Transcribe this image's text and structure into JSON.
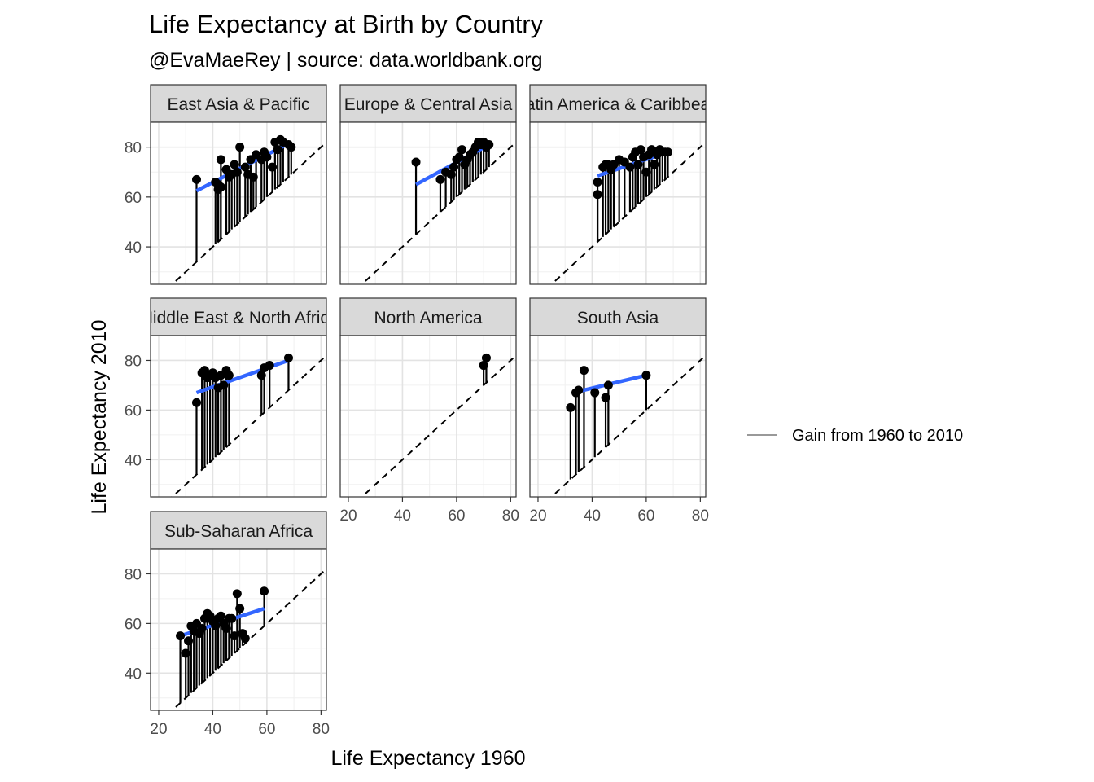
{
  "chart_data": {
    "type": "scatter",
    "title": "Life Expectancy at Birth by Country",
    "subtitle": "@EvaMaeRey | source: data.worldbank.org",
    "xlabel": "Life Expectancy 1960",
    "ylabel": "Life Expectancy 2010",
    "xlim": [
      17,
      82
    ],
    "ylim": [
      25,
      90
    ],
    "x_ticks": [
      20,
      40,
      60,
      80
    ],
    "y_ticks": [
      40,
      60,
      80
    ],
    "grid": true,
    "reference_line": "y = x",
    "legend": {
      "position": "right",
      "label": "Gain from 1960 to 2010",
      "color": "#999999"
    },
    "colors": {
      "points": "#000000",
      "segments": "#000000",
      "trend": "#3366FF",
      "reference": "#000000",
      "strip": "#d9d9d9"
    },
    "panels": [
      {
        "name": "East Asia & Pacific",
        "trend": [
          [
            34,
            62.5
          ],
          [
            69,
            82
          ]
        ],
        "points": [
          [
            34,
            67
          ],
          [
            41,
            66
          ],
          [
            42,
            65
          ],
          [
            42,
            63
          ],
          [
            43,
            64
          ],
          [
            43,
            75
          ],
          [
            45,
            71
          ],
          [
            46,
            68
          ],
          [
            47,
            69
          ],
          [
            48,
            73
          ],
          [
            49,
            70
          ],
          [
            50,
            80
          ],
          [
            52,
            72
          ],
          [
            53,
            69
          ],
          [
            54,
            75
          ],
          [
            55,
            68
          ],
          [
            56,
            77
          ],
          [
            58,
            75
          ],
          [
            59,
            78
          ],
          [
            60,
            76
          ],
          [
            62,
            72
          ],
          [
            63,
            82
          ],
          [
            64,
            79
          ],
          [
            65,
            83
          ],
          [
            66,
            82
          ],
          [
            68,
            81
          ],
          [
            69,
            80
          ]
        ]
      },
      {
        "name": "Europe & Central Asia",
        "trend": [
          [
            45,
            65
          ],
          [
            72,
            81
          ]
        ],
        "points": [
          [
            45,
            74
          ],
          [
            54,
            67
          ],
          [
            56,
            70
          ],
          [
            58,
            69
          ],
          [
            59,
            72
          ],
          [
            60,
            75
          ],
          [
            61,
            76
          ],
          [
            62,
            79
          ],
          [
            63,
            73
          ],
          [
            64,
            75
          ],
          [
            65,
            77
          ],
          [
            66,
            78
          ],
          [
            67,
            80
          ],
          [
            68,
            82
          ],
          [
            69,
            81
          ],
          [
            70,
            82
          ],
          [
            71,
            80
          ],
          [
            72,
            81
          ]
        ]
      },
      {
        "name": "Latin America & Caribbean",
        "trend": [
          [
            42,
            68.5
          ],
          [
            68,
            78
          ]
        ],
        "points": [
          [
            42,
            61
          ],
          [
            42,
            66
          ],
          [
            44,
            72
          ],
          [
            45,
            73
          ],
          [
            46,
            73
          ],
          [
            47,
            71
          ],
          [
            48,
            73
          ],
          [
            50,
            75
          ],
          [
            52,
            74
          ],
          [
            54,
            72
          ],
          [
            55,
            76
          ],
          [
            56,
            78
          ],
          [
            57,
            73
          ],
          [
            58,
            79
          ],
          [
            59,
            76
          ],
          [
            60,
            70
          ],
          [
            61,
            77
          ],
          [
            62,
            79
          ],
          [
            63,
            73
          ],
          [
            64,
            77
          ],
          [
            65,
            79
          ],
          [
            66,
            78
          ],
          [
            67,
            78
          ],
          [
            68,
            78
          ]
        ]
      },
      {
        "name": "Middle East & North Africa",
        "trend": [
          [
            34,
            67
          ],
          [
            68,
            80
          ]
        ],
        "points": [
          [
            34,
            63
          ],
          [
            36,
            75
          ],
          [
            37,
            76
          ],
          [
            38,
            73
          ],
          [
            39,
            74
          ],
          [
            40,
            75
          ],
          [
            41,
            73
          ],
          [
            42,
            69
          ],
          [
            43,
            74
          ],
          [
            44,
            70
          ],
          [
            45,
            76
          ],
          [
            46,
            74
          ],
          [
            58,
            74
          ],
          [
            59,
            77
          ],
          [
            61,
            78
          ],
          [
            68,
            81
          ]
        ]
      },
      {
        "name": "North America",
        "trend": [],
        "points": [
          [
            70,
            78
          ],
          [
            71,
            81
          ]
        ]
      },
      {
        "name": "South Asia",
        "trend": [
          [
            33,
            67
          ],
          [
            60,
            74
          ]
        ],
        "points": [
          [
            32,
            61
          ],
          [
            34,
            67
          ],
          [
            35,
            68
          ],
          [
            37,
            76
          ],
          [
            41,
            67
          ],
          [
            45,
            65
          ],
          [
            46,
            70
          ],
          [
            60,
            74
          ]
        ]
      },
      {
        "name": "Sub-Saharan Africa",
        "trend": [
          [
            28,
            55
          ],
          [
            59,
            66
          ]
        ],
        "points": [
          [
            28,
            55
          ],
          [
            30,
            48
          ],
          [
            31,
            53
          ],
          [
            32,
            59
          ],
          [
            33,
            57
          ],
          [
            34,
            60
          ],
          [
            35,
            56
          ],
          [
            36,
            58
          ],
          [
            37,
            62
          ],
          [
            38,
            64
          ],
          [
            39,
            63
          ],
          [
            40,
            61
          ],
          [
            41,
            59
          ],
          [
            42,
            62
          ],
          [
            43,
            63
          ],
          [
            44,
            60
          ],
          [
            45,
            58
          ],
          [
            46,
            62
          ],
          [
            47,
            62
          ],
          [
            48,
            55
          ],
          [
            49,
            72
          ],
          [
            50,
            66
          ],
          [
            51,
            56
          ],
          [
            52,
            54
          ],
          [
            59,
            73
          ]
        ]
      }
    ]
  }
}
